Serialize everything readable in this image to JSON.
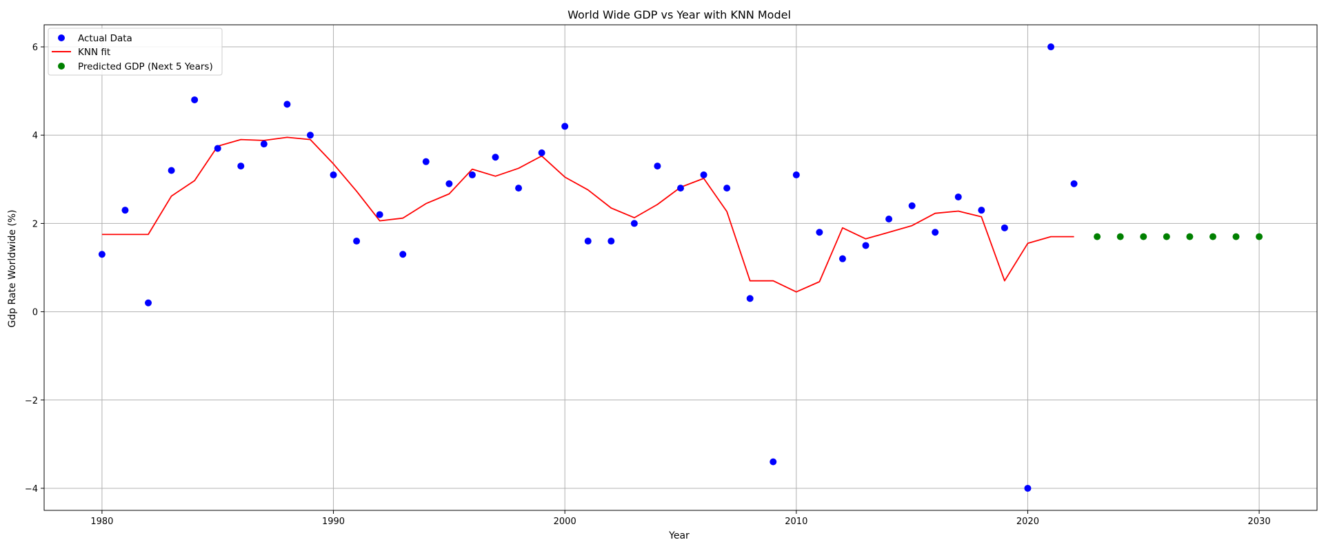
{
  "chart_data": {
    "type": "scatter",
    "title": "World Wide GDP vs Year with KNN Model",
    "xlabel": "Year",
    "ylabel": "Gdp Rate Worldwide (%)",
    "xlim": [
      1977.5,
      2032.5
    ],
    "ylim": [
      -4.5,
      6.5
    ],
    "xticks": [
      1980,
      1990,
      2000,
      2010,
      2020,
      2030
    ],
    "yticks": [
      -4,
      -2,
      0,
      2,
      4,
      6
    ],
    "grid": true,
    "legend_position": "upper-left",
    "series": [
      {
        "name": "Actual Data",
        "kind": "scatter",
        "color": "#0000ff",
        "x": [
          1980,
          1981,
          1982,
          1983,
          1984,
          1985,
          1986,
          1987,
          1988,
          1989,
          1990,
          1991,
          1992,
          1993,
          1994,
          1995,
          1996,
          1997,
          1998,
          1999,
          2000,
          2001,
          2002,
          2003,
          2004,
          2005,
          2006,
          2007,
          2008,
          2009,
          2010,
          2011,
          2012,
          2013,
          2014,
          2015,
          2016,
          2017,
          2018,
          2019,
          2020,
          2021,
          2022
        ],
        "y": [
          1.3,
          2.3,
          0.2,
          3.2,
          4.8,
          3.7,
          3.3,
          3.8,
          4.7,
          4.0,
          3.1,
          1.6,
          2.2,
          1.3,
          3.4,
          2.9,
          3.1,
          3.5,
          2.8,
          3.6,
          4.2,
          1.6,
          1.6,
          2.0,
          3.3,
          2.8,
          3.1,
          2.8,
          0.3,
          -3.4,
          3.1,
          1.8,
          1.2,
          1.5,
          2.1,
          2.4,
          1.8,
          2.6,
          2.3,
          1.9,
          -4.0,
          6.0,
          2.9
        ]
      },
      {
        "name": "KNN fit",
        "kind": "line",
        "color": "#ff0000",
        "x": [
          1980,
          1981,
          1982,
          1983,
          1984,
          1985,
          1986,
          1987,
          1988,
          1989,
          1990,
          1991,
          1992,
          1993,
          1994,
          1995,
          1996,
          1997,
          1998,
          1999,
          2000,
          2001,
          2002,
          2003,
          2004,
          2005,
          2006,
          2007,
          2008,
          2009,
          2010,
          2011,
          2012,
          2013,
          2014,
          2015,
          2016,
          2017,
          2018,
          2019,
          2020,
          2021,
          2022
        ],
        "y": [
          1.75,
          1.75,
          1.75,
          2.62,
          2.97,
          3.75,
          3.9,
          3.88,
          3.95,
          3.9,
          3.35,
          2.73,
          2.06,
          2.12,
          2.45,
          2.67,
          3.23,
          3.07,
          3.25,
          3.53,
          3.05,
          2.76,
          2.35,
          2.13,
          2.43,
          2.82,
          3.02,
          2.27,
          0.7,
          0.7,
          0.45,
          0.68,
          1.9,
          1.65,
          1.8,
          1.95,
          2.23,
          2.28,
          2.15,
          0.7,
          1.55,
          1.7,
          1.7
        ]
      },
      {
        "name": "Predicted GDP (Next 5 Years)",
        "kind": "scatter",
        "color": "#008000",
        "x": [
          2023,
          2024,
          2025,
          2026,
          2027,
          2028,
          2029,
          2030
        ],
        "y": [
          1.7,
          1.7,
          1.7,
          1.7,
          1.7,
          1.7,
          1.7,
          1.7
        ]
      }
    ]
  }
}
